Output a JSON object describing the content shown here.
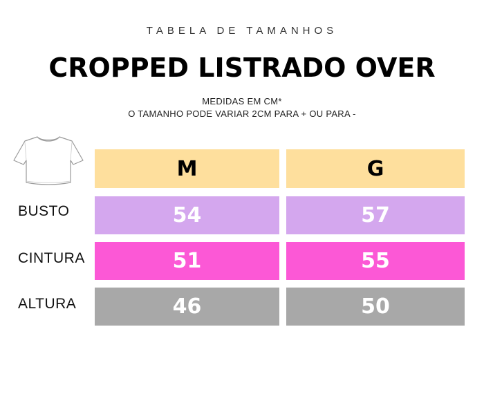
{
  "header": {
    "subtitle": "TABELA DE TAMANHOS",
    "title": "CROPPED LISTRADO OVER",
    "note_line1": "MEDIDAS EM CM*",
    "note_line2": "O TAMANHO PODE VARIAR 2CM PARA + OU PARA -"
  },
  "garment_icon": "cropped-tshirt-icon",
  "table": {
    "sizes": [
      "M",
      "G"
    ],
    "rows": [
      {
        "label": "BUSTO",
        "values": [
          "54",
          "57"
        ],
        "color": "#d4a7ee"
      },
      {
        "label": "CINTURA",
        "values": [
          "51",
          "55"
        ],
        "color": "#fc58d6"
      },
      {
        "label": "ALTURA",
        "values": [
          "46",
          "50"
        ],
        "color": "#a8a8a8"
      }
    ],
    "header_color": "#fedf9d"
  }
}
